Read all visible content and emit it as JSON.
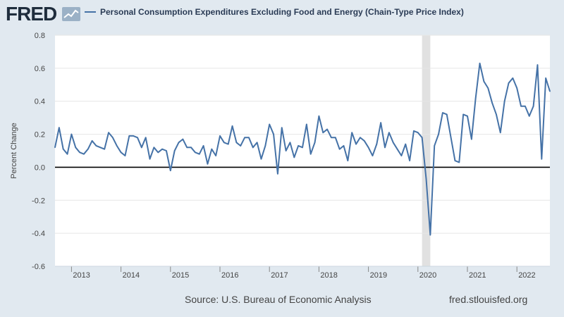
{
  "header": {
    "logo_text": "FRED",
    "legend_label": "Personal Consumption Expenditures Excluding Food and Energy (Chain-Type Price Index)"
  },
  "footer": {
    "source": "Source: U.S. Bureau of Economic Analysis",
    "url": "fred.stlouisfed.org"
  },
  "colors": {
    "series": "#4572a7",
    "background": "#e1e9f0",
    "plot_background": "#ffffff",
    "recession_shading": "#e1e1e1"
  },
  "chart_data": {
    "type": "line",
    "title": "",
    "xlabel": "",
    "ylabel": "Percent Change",
    "ylim": [
      -0.6,
      0.8
    ],
    "yticks": [
      -0.6,
      -0.4,
      -0.2,
      0.0,
      0.2,
      0.4,
      0.6,
      0.8
    ],
    "ytick_labels": [
      "-0.6",
      "-0.4",
      "-0.2",
      "0.0",
      "0.2",
      "0.4",
      "0.6",
      "0.8"
    ],
    "xlim": [
      "2012-09",
      "2022-09"
    ],
    "xtick_labels": [
      "2013",
      "2014",
      "2015",
      "2016",
      "2017",
      "2018",
      "2019",
      "2020",
      "2021",
      "2022"
    ],
    "grid": "horizontal",
    "zero_line": true,
    "recession": {
      "start": "2020-02",
      "end": "2020-04"
    },
    "series": [
      {
        "name": "Personal Consumption Expenditures Excluding Food and Energy (Chain-Type Price Index)",
        "x": [
          "2012-09",
          "2012-10",
          "2012-11",
          "2012-12",
          "2013-01",
          "2013-02",
          "2013-03",
          "2013-04",
          "2013-05",
          "2013-06",
          "2013-07",
          "2013-08",
          "2013-09",
          "2013-10",
          "2013-11",
          "2013-12",
          "2014-01",
          "2014-02",
          "2014-03",
          "2014-04",
          "2014-05",
          "2014-06",
          "2014-07",
          "2014-08",
          "2014-09",
          "2014-10",
          "2014-11",
          "2014-12",
          "2015-01",
          "2015-02",
          "2015-03",
          "2015-04",
          "2015-05",
          "2015-06",
          "2015-07",
          "2015-08",
          "2015-09",
          "2015-10",
          "2015-11",
          "2015-12",
          "2016-01",
          "2016-02",
          "2016-03",
          "2016-04",
          "2016-05",
          "2016-06",
          "2016-07",
          "2016-08",
          "2016-09",
          "2016-10",
          "2016-11",
          "2016-12",
          "2017-01",
          "2017-02",
          "2017-03",
          "2017-04",
          "2017-05",
          "2017-06",
          "2017-07",
          "2017-08",
          "2017-09",
          "2017-10",
          "2017-11",
          "2017-12",
          "2018-01",
          "2018-02",
          "2018-03",
          "2018-04",
          "2018-05",
          "2018-06",
          "2018-07",
          "2018-08",
          "2018-09",
          "2018-10",
          "2018-11",
          "2018-12",
          "2019-01",
          "2019-02",
          "2019-03",
          "2019-04",
          "2019-05",
          "2019-06",
          "2019-07",
          "2019-08",
          "2019-09",
          "2019-10",
          "2019-11",
          "2019-12",
          "2020-01",
          "2020-02",
          "2020-03",
          "2020-04",
          "2020-05",
          "2020-06",
          "2020-07",
          "2020-08",
          "2020-09",
          "2020-10",
          "2020-11",
          "2020-12",
          "2021-01",
          "2021-02",
          "2021-03",
          "2021-04",
          "2021-05",
          "2021-06",
          "2021-07",
          "2021-08",
          "2021-09",
          "2021-10",
          "2021-11",
          "2021-12",
          "2022-01",
          "2022-02",
          "2022-03",
          "2022-04",
          "2022-05",
          "2022-06",
          "2022-07",
          "2022-08",
          "2022-09"
        ],
        "values": [
          0.12,
          0.24,
          0.11,
          0.08,
          0.2,
          0.12,
          0.09,
          0.08,
          0.11,
          0.16,
          0.13,
          0.12,
          0.11,
          0.21,
          0.18,
          0.13,
          0.09,
          0.07,
          0.19,
          0.19,
          0.18,
          0.12,
          0.18,
          0.05,
          0.12,
          0.09,
          0.11,
          0.1,
          -0.02,
          0.1,
          0.15,
          0.17,
          0.12,
          0.12,
          0.09,
          0.08,
          0.13,
          0.02,
          0.11,
          0.07,
          0.19,
          0.15,
          0.14,
          0.25,
          0.15,
          0.13,
          0.18,
          0.18,
          0.12,
          0.15,
          0.05,
          0.13,
          0.26,
          0.2,
          -0.04,
          0.24,
          0.1,
          0.15,
          0.06,
          0.13,
          0.12,
          0.26,
          0.08,
          0.15,
          0.31,
          0.21,
          0.23,
          0.18,
          0.18,
          0.11,
          0.13,
          0.04,
          0.21,
          0.14,
          0.18,
          0.16,
          0.12,
          0.07,
          0.14,
          0.27,
          0.12,
          0.21,
          0.15,
          0.11,
          0.07,
          0.14,
          0.04,
          0.22,
          0.21,
          0.18,
          -0.07,
          -0.41,
          0.13,
          0.2,
          0.33,
          0.32,
          0.18,
          0.04,
          0.03,
          0.32,
          0.31,
          0.17,
          0.42,
          0.63,
          0.52,
          0.48,
          0.39,
          0.32,
          0.21,
          0.4,
          0.51,
          0.54,
          0.48,
          0.37,
          0.37,
          0.31,
          0.37,
          0.62,
          0.05,
          0.54,
          0.46
        ]
      }
    ]
  }
}
